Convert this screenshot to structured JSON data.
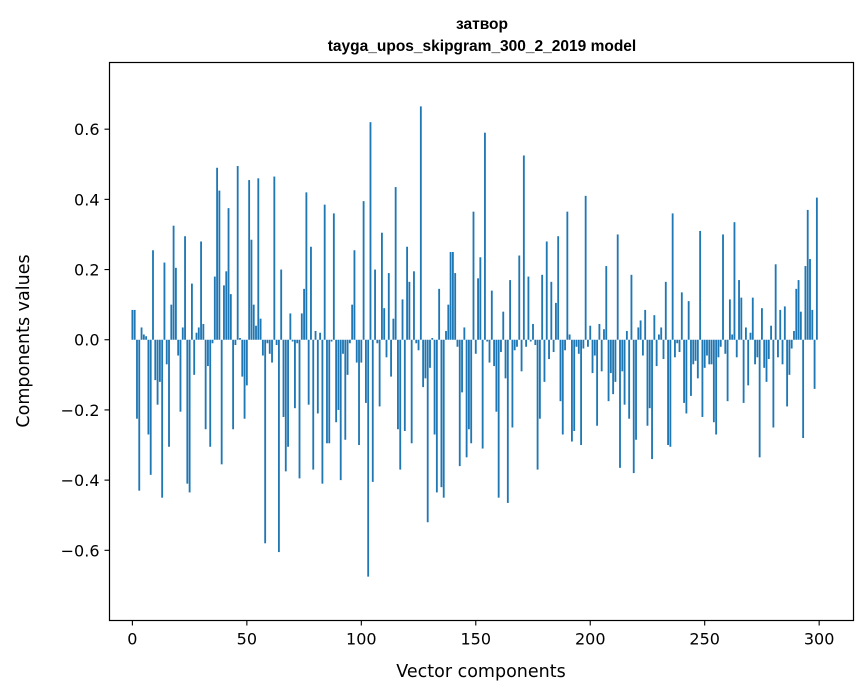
{
  "chart_data": {
    "type": "bar",
    "title": "затвор",
    "subtitle": "tayga_upos_skipgram_300_2_2019 model",
    "xlabel": "Vector components",
    "ylabel": "Components values",
    "xlim": [
      -10,
      315
    ],
    "ylim": [
      -0.8,
      0.79
    ],
    "xticks": [
      0,
      50,
      100,
      150,
      200,
      250,
      300
    ],
    "yticks": [
      -0.6,
      -0.4,
      -0.2,
      0.0,
      0.2,
      0.4,
      0.6
    ],
    "ytick_labels": [
      "−0.6",
      "−0.4",
      "−0.2",
      "0.0",
      "0.2",
      "0.4",
      "0.6"
    ],
    "xtick_labels": [
      "0",
      "50",
      "100",
      "150",
      "200",
      "250",
      "300"
    ],
    "bar_color": "#1f77b4",
    "values": [
      0.085,
      0.085,
      -0.225,
      -0.43,
      0.035,
      0.015,
      0.01,
      -0.27,
      -0.385,
      0.255,
      -0.115,
      -0.185,
      -0.12,
      -0.45,
      0.22,
      -0.07,
      -0.305,
      0.1,
      0.325,
      0.205,
      -0.045,
      -0.205,
      0.035,
      0.295,
      -0.41,
      -0.435,
      0.16,
      -0.1,
      0.02,
      0.035,
      0.28,
      0.045,
      -0.255,
      -0.075,
      -0.305,
      -0.01,
      0.18,
      0.49,
      0.425,
      -0.355,
      0.155,
      0.195,
      0.375,
      0.13,
      -0.255,
      -0.015,
      0.495,
      0.005,
      -0.105,
      -0.225,
      -0.13,
      0.455,
      0.285,
      0.1,
      0.04,
      0.46,
      0.06,
      -0.045,
      -0.58,
      -0.01,
      -0.04,
      -0.065,
      0.465,
      -0.015,
      -0.605,
      0.2,
      -0.22,
      -0.375,
      -0.305,
      0.075,
      -0.005,
      -0.195,
      -0.01,
      -0.395,
      0.075,
      0.145,
      0.42,
      -0.185,
      0.265,
      -0.37,
      0.025,
      -0.21,
      0.02,
      -0.41,
      0.385,
      -0.295,
      -0.295,
      -0.005,
      0.36,
      -0.235,
      -0.2,
      -0.4,
      -0.04,
      -0.285,
      -0.1,
      -0.01,
      0.1,
      0.255,
      -0.065,
      -0.3,
      -0.065,
      0.395,
      -0.18,
      -0.675,
      0.62,
      -0.405,
      0.2,
      -0.01,
      -0.19,
      0.305,
      0.09,
      -0.05,
      0.19,
      -0.105,
      0.06,
      0.435,
      -0.255,
      -0.37,
      0.115,
      -0.26,
      0.265,
      0.165,
      -0.295,
      0.195,
      -0.01,
      -0.03,
      0.665,
      -0.135,
      -0.11,
      -0.52,
      -0.08,
      0.005,
      -0.27,
      -0.435,
      0.145,
      -0.42,
      -0.45,
      0.025,
      0.1,
      0.25,
      0.25,
      0.19,
      -0.02,
      -0.36,
      -0.15,
      0.035,
      -0.335,
      -0.255,
      -0.295,
      0.365,
      -0.04,
      0.175,
      0.235,
      -0.31,
      0.59,
      -0.005,
      -0.065,
      0.14,
      -0.075,
      -0.205,
      -0.45,
      -0.035,
      0.08,
      -0.11,
      -0.465,
      0.17,
      -0.25,
      -0.03,
      -0.02,
      0.24,
      -0.09,
      0.525,
      -0.02,
      0.18,
      -0.005,
      0.045,
      -0.015,
      -0.37,
      -0.225,
      0.185,
      -0.12,
      0.28,
      -0.055,
      0.165,
      -0.035,
      0.105,
      0.295,
      -0.175,
      -0.27,
      -0.03,
      0.365,
      0.015,
      -0.29,
      -0.26,
      -0.02,
      -0.04,
      -0.3,
      -0.025,
      0.41,
      -0.02,
      0.04,
      -0.095,
      -0.045,
      -0.245,
      0.045,
      -0.09,
      0.03,
      0.21,
      -0.175,
      -0.095,
      -0.155,
      -0.12,
      0.3,
      -0.365,
      -0.09,
      -0.185,
      0.025,
      -0.225,
      0.185,
      -0.38,
      -0.285,
      0.035,
      0.055,
      -0.045,
      0.085,
      -0.245,
      -0.195,
      -0.34,
      0.07,
      -0.075,
      0.015,
      0.035,
      -0.055,
      0.165,
      -0.3,
      -0.305,
      0.36,
      -0.05,
      -0.01,
      -0.035,
      0.135,
      -0.18,
      -0.21,
      0.11,
      -0.16,
      -0.07,
      -0.06,
      -0.11,
      0.31,
      -0.22,
      -0.08,
      -0.045,
      -0.07,
      -0.07,
      -0.235,
      -0.27,
      -0.05,
      -0.02,
      0.3,
      -0.04,
      -0.175,
      0.115,
      0.015,
      0.335,
      -0.05,
      0.17,
      0.12,
      -0.18,
      0.035,
      -0.13,
      0.02,
      0.12,
      -0.07,
      -0.05,
      -0.335,
      0.09,
      -0.08,
      -0.12,
      -0.055,
      0.04,
      -0.25,
      0.215,
      -0.05,
      0.085,
      -0.07,
      0.095,
      -0.19,
      -0.1,
      -0.025,
      0.025,
      0.145,
      0.17,
      0.08,
      -0.28,
      0.21,
      0.37,
      0.23,
      0.085,
      -0.14,
      0.405
    ]
  }
}
